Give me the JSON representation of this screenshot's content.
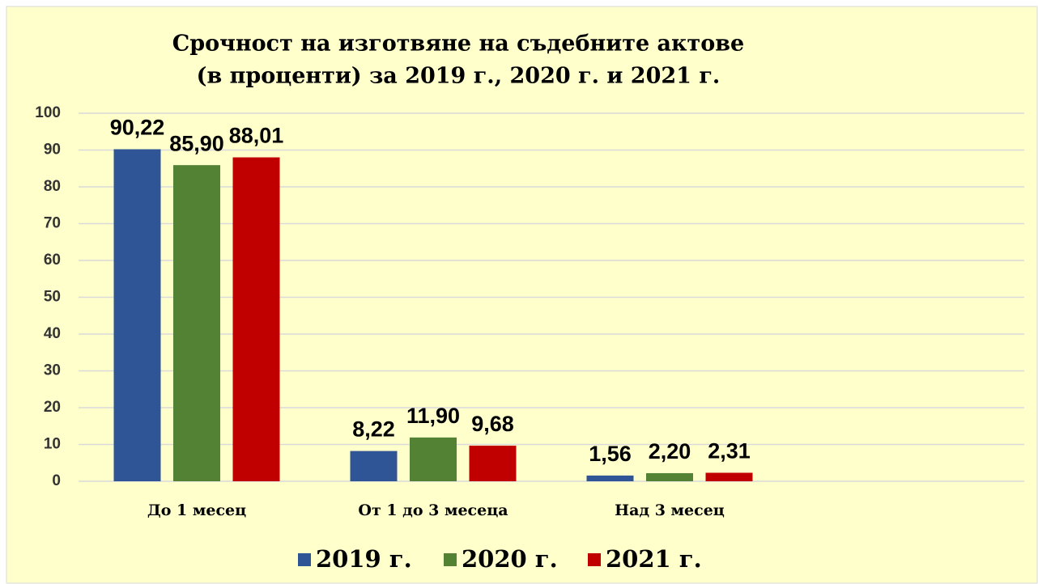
{
  "chart_data": {
    "type": "bar",
    "title": [
      "Срочност на изготвяне на съдебните актове",
      "(в проценти) за 2019 г., 2020 г. и 2021 г."
    ],
    "categories": [
      "До 1 месец",
      "От 1 до 3 месеца",
      "Над 3 месец"
    ],
    "series": [
      {
        "name": "2019 г.",
        "color": "#2f5597",
        "values": [
          90.22,
          8.22,
          1.56
        ],
        "value_labels": [
          "90,22",
          "8,22",
          "1,56"
        ]
      },
      {
        "name": "2020 г.",
        "color": "#548235",
        "values": [
          85.9,
          11.9,
          2.2
        ],
        "value_labels": [
          "85,90",
          "11,90",
          "2,20"
        ]
      },
      {
        "name": "2021 г.",
        "color": "#c00000",
        "values": [
          88.01,
          9.68,
          2.31
        ],
        "value_labels": [
          "88,01",
          "9,68",
          "2,31"
        ]
      }
    ],
    "ylim": [
      0,
      100
    ],
    "yticks": [
      0,
      10,
      20,
      30,
      40,
      50,
      60,
      70,
      80,
      90,
      100
    ],
    "grid": true,
    "legend": "bottom"
  }
}
